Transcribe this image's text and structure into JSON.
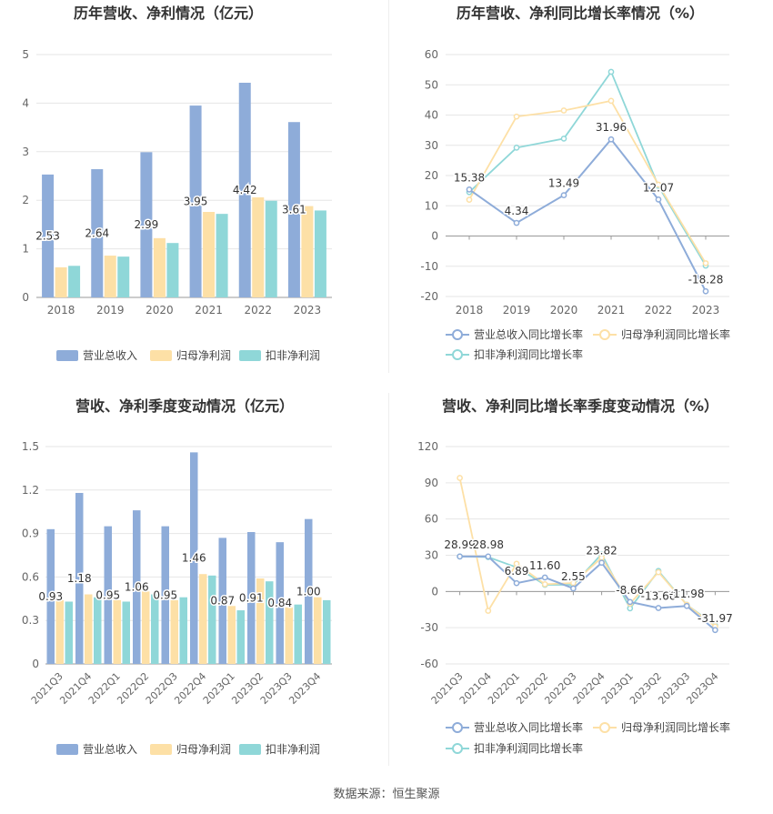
{
  "source_prefix": "数据来源：",
  "source_name": "恒生聚源",
  "colors": {
    "revenue": "#8eacd9",
    "net_profit": "#fde0a6",
    "deducted_profit": "#8fd7d8",
    "axis": "#999999",
    "grid": "#e6e6e6",
    "text": "#333333"
  },
  "chart_data": [
    {
      "type": "bar",
      "title": "历年营收、净利情况（亿元）",
      "categories": [
        "2018",
        "2019",
        "2020",
        "2021",
        "2022",
        "2023"
      ],
      "ylim": [
        0,
        5
      ],
      "yticks": [
        0,
        1,
        2,
        3,
        4,
        5
      ],
      "series": [
        {
          "name": "营业总收入",
          "values": [
            2.53,
            2.64,
            2.99,
            3.95,
            4.42,
            3.61
          ],
          "labels": [
            "2.53",
            "2.64",
            "2.99",
            "3.95",
            "4.42",
            "3.61"
          ]
        },
        {
          "name": "归母净利润",
          "values": [
            0.62,
            0.86,
            1.22,
            1.76,
            2.06,
            1.88
          ]
        },
        {
          "name": "扣非净利润",
          "values": [
            0.65,
            0.84,
            1.12,
            1.72,
            1.99,
            1.79
          ]
        }
      ],
      "legend": "bottom",
      "grid": true
    },
    {
      "type": "line",
      "title": "历年营收、净利同比增长率情况（%）",
      "categories": [
        "2018",
        "2019",
        "2020",
        "2021",
        "2022",
        "2023"
      ],
      "ylim": [
        -20,
        60
      ],
      "yticks": [
        -20,
        -10,
        0,
        10,
        20,
        30,
        40,
        50,
        60
      ],
      "series": [
        {
          "name": "营业总收入同比增长率",
          "values": [
            15.38,
            4.34,
            13.49,
            31.96,
            12.07,
            -18.28
          ],
          "labels": [
            "15.38",
            "4.34",
            "13.49",
            "31.96",
            "12.07",
            "-18.28"
          ]
        },
        {
          "name": "归母净利润同比增长率",
          "values": [
            12.0,
            39.5,
            41.5,
            44.7,
            17.0,
            -9.0
          ]
        },
        {
          "name": "扣非净利润同比增长率",
          "values": [
            14.5,
            29.2,
            32.2,
            54.3,
            16.5,
            -9.8
          ]
        }
      ],
      "legend": "bottom",
      "grid": true
    },
    {
      "type": "bar",
      "title": "营收、净利季度变动情况（亿元）",
      "categories": [
        "2021Q3",
        "2021Q4",
        "2022Q1",
        "2022Q2",
        "2022Q3",
        "2022Q4",
        "2023Q1",
        "2023Q2",
        "2023Q3",
        "2023Q4"
      ],
      "ylim": [
        0,
        1.5
      ],
      "yticks": [
        0,
        0.3,
        0.6,
        0.9,
        1.2,
        1.5
      ],
      "series": [
        {
          "name": "营业总收入",
          "values": [
            0.93,
            1.18,
            0.95,
            1.06,
            0.95,
            1.46,
            0.87,
            0.91,
            0.84,
            1.0
          ],
          "labels": [
            "0.93",
            "1.18",
            "0.95",
            "1.06",
            "0.95",
            "1.46",
            "0.87",
            "0.91",
            "0.84",
            "1.00"
          ]
        },
        {
          "name": "归母净利润",
          "values": [
            0.44,
            0.48,
            0.44,
            0.5,
            0.44,
            0.62,
            0.4,
            0.59,
            0.39,
            0.46
          ]
        },
        {
          "name": "扣非净利润",
          "values": [
            0.43,
            0.46,
            0.43,
            0.48,
            0.46,
            0.61,
            0.37,
            0.57,
            0.41,
            0.44
          ]
        }
      ],
      "legend": "bottom",
      "grid": true
    },
    {
      "type": "line",
      "title": "营收、净利同比增长率季度变动情况（%）",
      "categories": [
        "2021Q3",
        "2021Q4",
        "2022Q1",
        "2022Q2",
        "2022Q3",
        "2022Q4",
        "2023Q1",
        "2023Q2",
        "2023Q3",
        "2023Q4"
      ],
      "ylim": [
        -60,
        120
      ],
      "yticks": [
        -60,
        -30,
        0,
        30,
        60,
        90,
        120
      ],
      "series": [
        {
          "name": "营业总收入同比增长率",
          "values": [
            28.99,
            28.98,
            6.89,
            11.6,
            2.55,
            23.82,
            -8.66,
            -13.66,
            -11.98,
            -31.97
          ],
          "labels": [
            "28.99",
            "28.98",
            "6.89",
            "11.60",
            "2.55",
            "23.82",
            "-8.66",
            "-13.66",
            "-11.98",
            "-31.97"
          ]
        },
        {
          "name": "归母净利润同比增长率",
          "values": [
            94,
            -16,
            23,
            6,
            7,
            28,
            -10,
            16,
            -11,
            -29
          ]
        },
        {
          "name": "扣非净利润同比增长率",
          "values": [
            29,
            28.5,
            20,
            5.5,
            5.5,
            31,
            -14,
            17,
            -11,
            -28
          ]
        }
      ],
      "legend": "bottom",
      "grid": true
    }
  ]
}
